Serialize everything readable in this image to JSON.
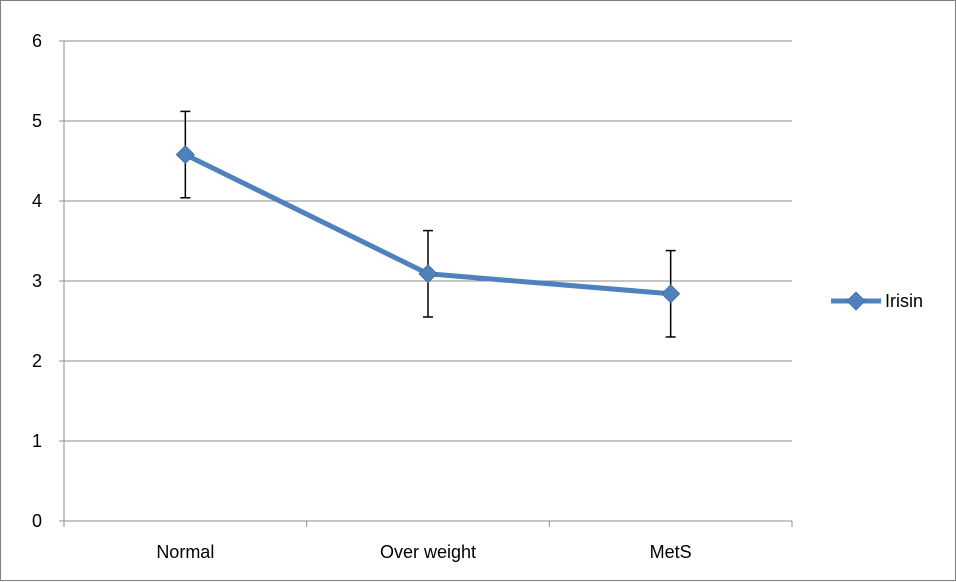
{
  "chart_data": {
    "type": "line",
    "title": "",
    "xlabel": "",
    "ylabel": "",
    "categories": [
      "Normal",
      "Over weight",
      "MetS"
    ],
    "ylim": [
      0,
      6
    ],
    "yticks": [
      0,
      1,
      2,
      3,
      4,
      5,
      6
    ],
    "grid": "horizontal",
    "legend_position": "right",
    "series": [
      {
        "name": "Irisin",
        "color": "#4F81BD",
        "marker": "diamond",
        "values": [
          4.58,
          3.09,
          2.84
        ],
        "error_low": [
          4.04,
          2.55,
          2.3
        ],
        "error_high": [
          5.12,
          3.63,
          3.38
        ]
      }
    ]
  }
}
